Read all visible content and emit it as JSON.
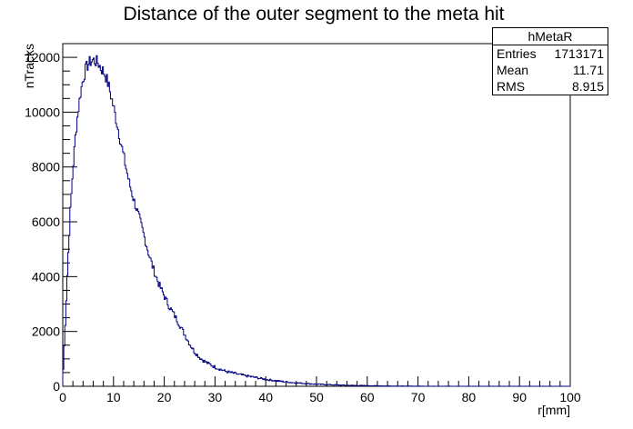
{
  "chart_data": {
    "type": "histogram",
    "title": "Distance of the outer segment to the meta hit",
    "xlabel": "r[mm]",
    "ylabel": "nTracks",
    "xlim": [
      0,
      100
    ],
    "ylim": [
      0,
      12500
    ],
    "x_ticks": [
      0,
      10,
      20,
      30,
      40,
      50,
      60,
      70,
      80,
      90,
      100
    ],
    "y_ticks": [
      0,
      2000,
      4000,
      6000,
      8000,
      10000,
      12000
    ],
    "line_color": "#000080",
    "bin_width": 0.2,
    "x": [
      0,
      0.5,
      1,
      1.5,
      2,
      2.5,
      3,
      3.5,
      4,
      4.5,
      5,
      5.5,
      6,
      6.5,
      7,
      7.5,
      8,
      8.5,
      9,
      10,
      11,
      12,
      13,
      14,
      15,
      16,
      17,
      18,
      19,
      20,
      21,
      22,
      23,
      24,
      25,
      26,
      27,
      28,
      30,
      32,
      35,
      38,
      40,
      43,
      45,
      48,
      50,
      53,
      55,
      58,
      60,
      63,
      65,
      67,
      70,
      75,
      80,
      90,
      100
    ],
    "values": [
      200,
      2300,
      4500,
      6400,
      7900,
      9100,
      10000,
      10700,
      11200,
      11550,
      11750,
      11850,
      11900,
      11850,
      11800,
      11600,
      11500,
      11300,
      11000,
      10200,
      9300,
      8400,
      7500,
      6800,
      6200,
      5500,
      4800,
      4200,
      3700,
      3300,
      2900,
      2600,
      2250,
      1900,
      1550,
      1250,
      1050,
      900,
      700,
      550,
      420,
      320,
      250,
      180,
      140,
      100,
      75,
      55,
      40,
      28,
      22,
      14,
      10,
      6,
      3,
      1,
      0,
      0,
      0
    ]
  },
  "stats": {
    "name": "hMetaR",
    "rows": [
      {
        "label": "Entries",
        "value": "1713171"
      },
      {
        "label": "Mean",
        "value": "11.71"
      },
      {
        "label": "RMS",
        "value": "8.915"
      }
    ]
  }
}
